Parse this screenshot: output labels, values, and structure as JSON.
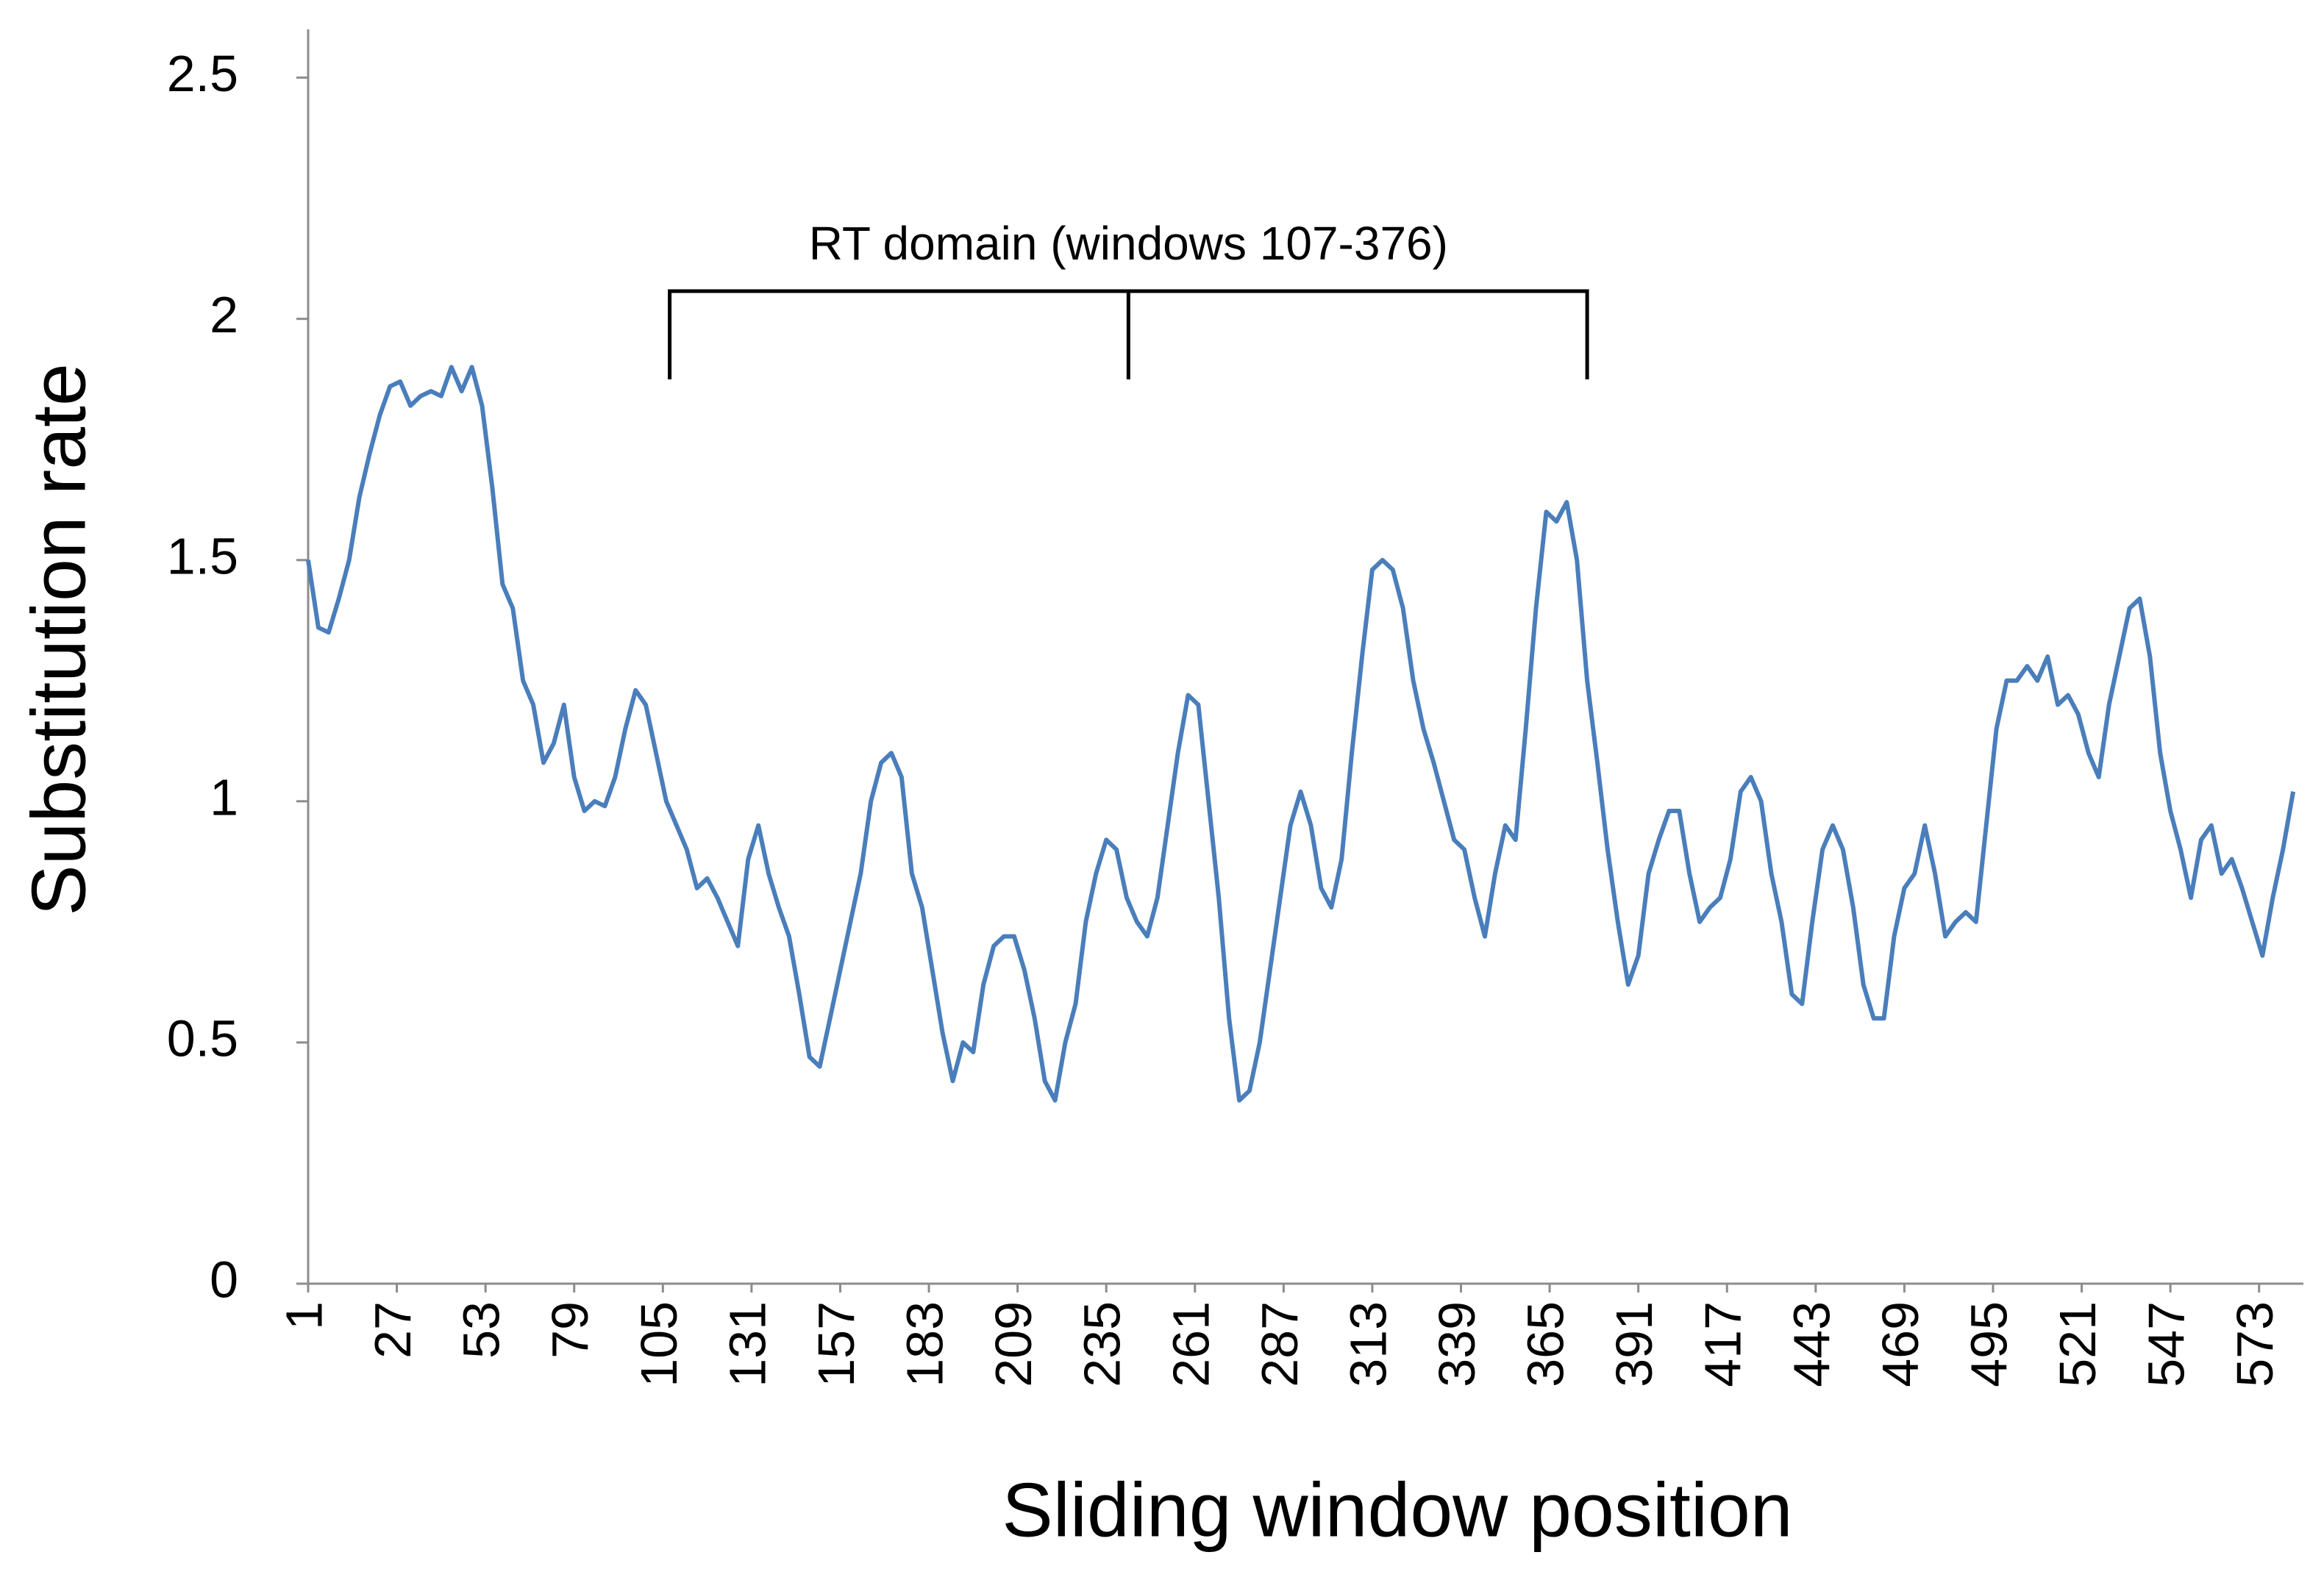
{
  "chart_data": {
    "type": "line",
    "annotation": {
      "text": "RT domain (windows 107-376)",
      "range": [
        107,
        376
      ]
    },
    "x_label": "Sliding window position",
    "y_label": "Substitution rate",
    "xlim": [
      1,
      586
    ],
    "xticks": [
      1,
      27,
      53,
      79,
      105,
      131,
      157,
      183,
      209,
      235,
      261,
      287,
      313,
      339,
      365,
      391,
      417,
      443,
      469,
      495,
      521,
      547,
      573
    ],
    "ylim": [
      0,
      2.6
    ],
    "yticks": [
      0,
      0.5,
      1,
      1.5,
      2,
      2.5
    ],
    "grid": false,
    "series": [
      {
        "name": "Substitution rate",
        "color": "#4a7ebb",
        "x": [
          1,
          4,
          7,
          10,
          13,
          16,
          19,
          22,
          25,
          28,
          31,
          34,
          37,
          40,
          43,
          46,
          49,
          52,
          55,
          58,
          61,
          64,
          67,
          70,
          73,
          76,
          79,
          82,
          85,
          88,
          91,
          94,
          97,
          100,
          103,
          106,
          109,
          112,
          115,
          118,
          121,
          124,
          127,
          130,
          133,
          136,
          139,
          142,
          145,
          148,
          151,
          154,
          157,
          160,
          163,
          166,
          169,
          172,
          175,
          178,
          181,
          184,
          187,
          190,
          193,
          196,
          199,
          202,
          205,
          208,
          211,
          214,
          217,
          220,
          223,
          226,
          229,
          232,
          235,
          238,
          241,
          244,
          247,
          250,
          253,
          256,
          259,
          262,
          265,
          268,
          271,
          274,
          277,
          280,
          283,
          286,
          289,
          292,
          295,
          298,
          301,
          304,
          307,
          310,
          313,
          316,
          319,
          322,
          325,
          328,
          331,
          334,
          337,
          340,
          343,
          346,
          349,
          352,
          355,
          358,
          361,
          364,
          367,
          370,
          373,
          376,
          379,
          382,
          385,
          388,
          391,
          394,
          397,
          400,
          403,
          406,
          409,
          412,
          415,
          418,
          421,
          424,
          427,
          430,
          433,
          436,
          439,
          442,
          445,
          448,
          451,
          454,
          457,
          460,
          463,
          466,
          469,
          472,
          475,
          478,
          481,
          484,
          487,
          490,
          493,
          496,
          499,
          502,
          505,
          508,
          511,
          514,
          517,
          520,
          523,
          526,
          529,
          532,
          535,
          538,
          541,
          544,
          547,
          550,
          553,
          556,
          559,
          562,
          565,
          568,
          571,
          574,
          577,
          580,
          583
        ],
        "values": [
          1.5,
          1.36,
          1.35,
          1.42,
          1.5,
          1.63,
          1.72,
          1.8,
          1.86,
          1.87,
          1.82,
          1.84,
          1.85,
          1.84,
          1.9,
          1.85,
          1.9,
          1.82,
          1.65,
          1.45,
          1.4,
          1.25,
          1.2,
          1.08,
          1.12,
          1.2,
          1.05,
          0.98,
          1.0,
          0.99,
          1.05,
          1.15,
          1.23,
          1.2,
          1.1,
          1.0,
          0.95,
          0.9,
          0.82,
          0.84,
          0.8,
          0.75,
          0.7,
          0.88,
          0.95,
          0.85,
          0.78,
          0.72,
          0.6,
          0.47,
          0.45,
          0.55,
          0.65,
          0.75,
          0.85,
          1.0,
          1.08,
          1.1,
          1.05,
          0.85,
          0.78,
          0.65,
          0.52,
          0.42,
          0.5,
          0.48,
          0.62,
          0.7,
          0.72,
          0.72,
          0.65,
          0.55,
          0.42,
          0.38,
          0.5,
          0.58,
          0.75,
          0.85,
          0.92,
          0.9,
          0.8,
          0.75,
          0.72,
          0.8,
          0.95,
          1.1,
          1.22,
          1.2,
          1.0,
          0.8,
          0.55,
          0.38,
          0.4,
          0.5,
          0.65,
          0.8,
          0.95,
          1.02,
          0.95,
          0.82,
          0.78,
          0.88,
          1.1,
          1.3,
          1.48,
          1.5,
          1.48,
          1.4,
          1.25,
          1.15,
          1.08,
          1.0,
          0.92,
          0.9,
          0.8,
          0.72,
          0.85,
          0.95,
          0.92,
          1.15,
          1.4,
          1.6,
          1.58,
          1.62,
          1.5,
          1.25,
          1.08,
          0.9,
          0.75,
          0.62,
          0.68,
          0.85,
          0.92,
          0.98,
          0.98,
          0.85,
          0.75,
          0.78,
          0.8,
          0.88,
          1.02,
          1.05,
          1.0,
          0.85,
          0.75,
          0.6,
          0.58,
          0.75,
          0.9,
          0.95,
          0.9,
          0.78,
          0.62,
          0.55,
          0.55,
          0.72,
          0.82,
          0.85,
          0.95,
          0.85,
          0.72,
          0.75,
          0.77,
          0.75,
          0.95,
          1.15,
          1.25,
          1.25,
          1.28,
          1.25,
          1.3,
          1.2,
          1.22,
          1.18,
          1.1,
          1.05,
          1.2,
          1.3,
          1.4,
          1.42,
          1.3,
          1.1,
          0.98,
          0.9,
          0.8,
          0.92,
          0.95,
          0.85,
          0.88,
          0.82,
          0.75,
          0.68,
          0.8,
          0.9,
          1.02
        ]
      }
    ]
  }
}
